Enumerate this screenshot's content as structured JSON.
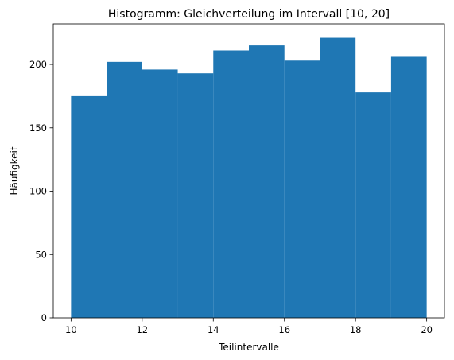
{
  "chart_data": {
    "type": "bar",
    "title": "Histogramm: Gleichverteilung im Intervall [10, 20]",
    "xlabel": "Teilintervalle",
    "ylabel": "Häufigkeit",
    "bin_edges": [
      10,
      11,
      12,
      13,
      14,
      15,
      16,
      17,
      18,
      19,
      20
    ],
    "values": [
      175,
      202,
      196,
      193,
      211,
      215,
      203,
      221,
      178,
      206
    ],
    "xlim": [
      9.5,
      20.5
    ],
    "ylim": [
      0,
      232
    ],
    "xticks": [
      "10",
      "12",
      "14",
      "16",
      "18",
      "20"
    ],
    "yticks": [
      "0",
      "50",
      "100",
      "150",
      "200"
    ],
    "bar_color": "#1f77b4",
    "grid": false
  }
}
